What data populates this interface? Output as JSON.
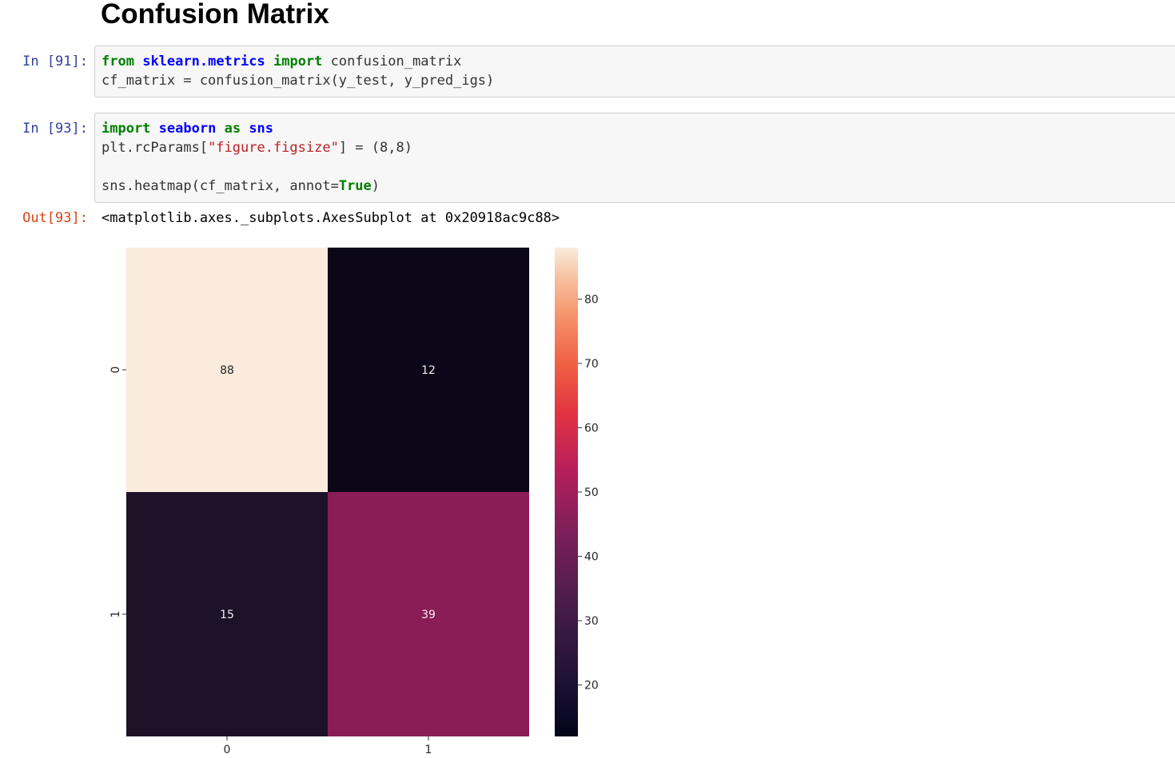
{
  "heading": "Confusion Matrix",
  "cells": [
    {
      "prompt": "In [91]:",
      "lines": [
        [
          {
            "t": "from",
            "c": "kw"
          },
          {
            "t": " ",
            "c": ""
          },
          {
            "t": "sklearn.metrics",
            "c": "mod"
          },
          {
            "t": " ",
            "c": ""
          },
          {
            "t": "import",
            "c": "kw"
          },
          {
            "t": " confusion_matrix",
            "c": ""
          }
        ],
        [
          {
            "t": "cf_matrix = confusion_matrix(y_test, y_pred_igs)",
            "c": ""
          }
        ]
      ]
    },
    {
      "prompt": "In [93]:",
      "lines": [
        [
          {
            "t": "import",
            "c": "kw"
          },
          {
            "t": " ",
            "c": ""
          },
          {
            "t": "seaborn",
            "c": "mod"
          },
          {
            "t": " ",
            "c": ""
          },
          {
            "t": "as",
            "c": "kw"
          },
          {
            "t": " ",
            "c": ""
          },
          {
            "t": "sns",
            "c": "mod"
          }
        ],
        [
          {
            "t": "plt.rcParams[",
            "c": ""
          },
          {
            "t": "\"figure.figsize\"",
            "c": "str"
          },
          {
            "t": "] = (8,8)",
            "c": ""
          }
        ],
        [],
        [
          {
            "t": "sns.heatmap(cf_matrix, annot=",
            "c": ""
          },
          {
            "t": "True",
            "c": "kw"
          },
          {
            "t": ")",
            "c": ""
          }
        ]
      ]
    }
  ],
  "output": {
    "prompt": "Out[93]:",
    "text": "<matplotlib.axes._subplots.AxesSubplot at 0x20918ac9c88>"
  },
  "chart_data": {
    "type": "heatmap",
    "title": "",
    "xlabel": "",
    "ylabel": "",
    "x_ticks": [
      "0",
      "1"
    ],
    "y_ticks": [
      "0",
      "1"
    ],
    "matrix": [
      [
        88,
        12
      ],
      [
        15,
        39
      ]
    ],
    "annot": true,
    "colormap": "rocket",
    "colorbar": {
      "range": [
        12,
        88
      ],
      "ticks": [
        20,
        30,
        40,
        50,
        60,
        70,
        80
      ]
    },
    "colors": {
      "cell_0_0": "#faebdd",
      "cell_0_1": "#0b0718",
      "cell_1_0": "#1d1228",
      "cell_1_1": "#8a1d56",
      "annot_dark": "#262626",
      "annot_light": "#eeeeee"
    }
  }
}
